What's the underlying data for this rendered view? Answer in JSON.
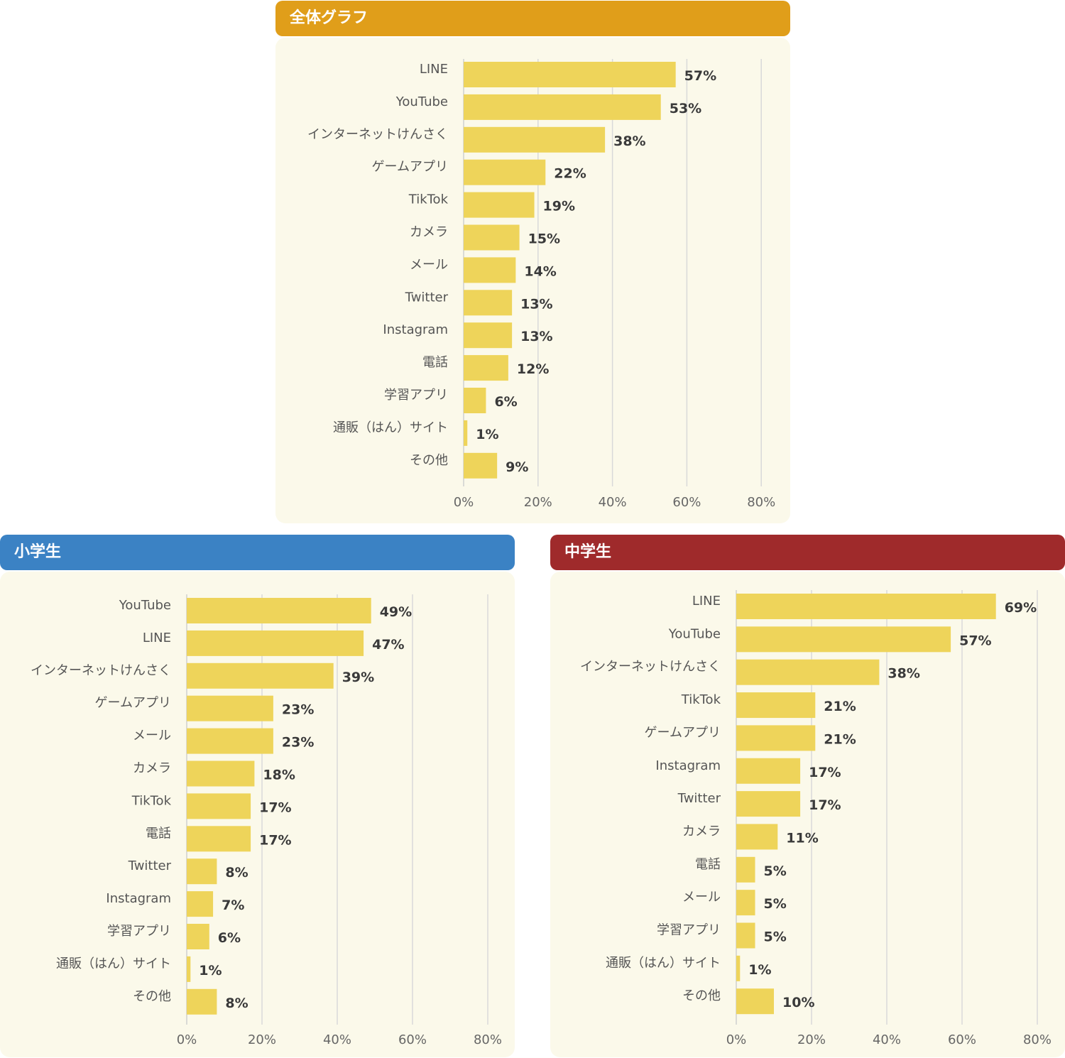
{
  "colors": {
    "bar": "#eed45a",
    "grid": "#d9d9d9",
    "panel_bg": "#fbf9ea",
    "overall_header": "#e09e1a",
    "elementary_header": "#3b82c4",
    "junior_high_header": "#9f2a2b"
  },
  "chart_data": [
    {
      "type": "bar",
      "orientation": "horizontal",
      "title": "全体グラフ",
      "categories": [
        "LINE",
        "YouTube",
        "インターネットけんさく",
        "ゲームアプリ",
        "TikTok",
        "カメラ",
        "メール",
        "Twitter",
        "Instagram",
        "電話",
        "学習アプリ",
        "通販（はん）サイト",
        "その他"
      ],
      "values": [
        57,
        53,
        38,
        22,
        19,
        15,
        14,
        13,
        13,
        12,
        6,
        1,
        9
      ],
      "value_labels": [
        "57%",
        "53%",
        "38%",
        "22%",
        "19%",
        "15%",
        "14%",
        "13%",
        "13%",
        "12%",
        "6%",
        "1%",
        "9%"
      ],
      "xlim": [
        0,
        80
      ],
      "ticks": [
        "0%",
        "20%",
        "40%",
        "60%",
        "80%"
      ],
      "grid": true
    },
    {
      "type": "bar",
      "orientation": "horizontal",
      "title": "小学生",
      "categories": [
        "YouTube",
        "LINE",
        "インターネットけんさく",
        "ゲームアプリ",
        "メール",
        "カメラ",
        "TikTok",
        "電話",
        "Twitter",
        "Instagram",
        "学習アプリ",
        "通販（はん）サイト",
        "その他"
      ],
      "values": [
        49,
        47,
        39,
        23,
        23,
        18,
        17,
        17,
        8,
        7,
        6,
        1,
        8
      ],
      "value_labels": [
        "49%",
        "47%",
        "39%",
        "23%",
        "23%",
        "18%",
        "17%",
        "17%",
        "8%",
        "7%",
        "6%",
        "1%",
        "8%"
      ],
      "xlim": [
        0,
        80
      ],
      "ticks": [
        "0%",
        "20%",
        "40%",
        "60%",
        "80%"
      ],
      "grid": true
    },
    {
      "type": "bar",
      "orientation": "horizontal",
      "title": "中学生",
      "categories": [
        "LINE",
        "YouTube",
        "インターネットけんさく",
        "TikTok",
        "ゲームアプリ",
        "Instagram",
        "Twitter",
        "カメラ",
        "電話",
        "メール",
        "学習アプリ",
        "通販（はん）サイト",
        "その他"
      ],
      "values": [
        69,
        57,
        38,
        21,
        21,
        17,
        17,
        11,
        5,
        5,
        5,
        1,
        10
      ],
      "value_labels": [
        "69%",
        "57%",
        "38%",
        "21%",
        "21%",
        "17%",
        "17%",
        "11%",
        "5%",
        "5%",
        "5%",
        "1%",
        "10%"
      ],
      "xlim": [
        0,
        80
      ],
      "ticks": [
        "0%",
        "20%",
        "40%",
        "60%",
        "80%"
      ],
      "grid": true
    }
  ]
}
